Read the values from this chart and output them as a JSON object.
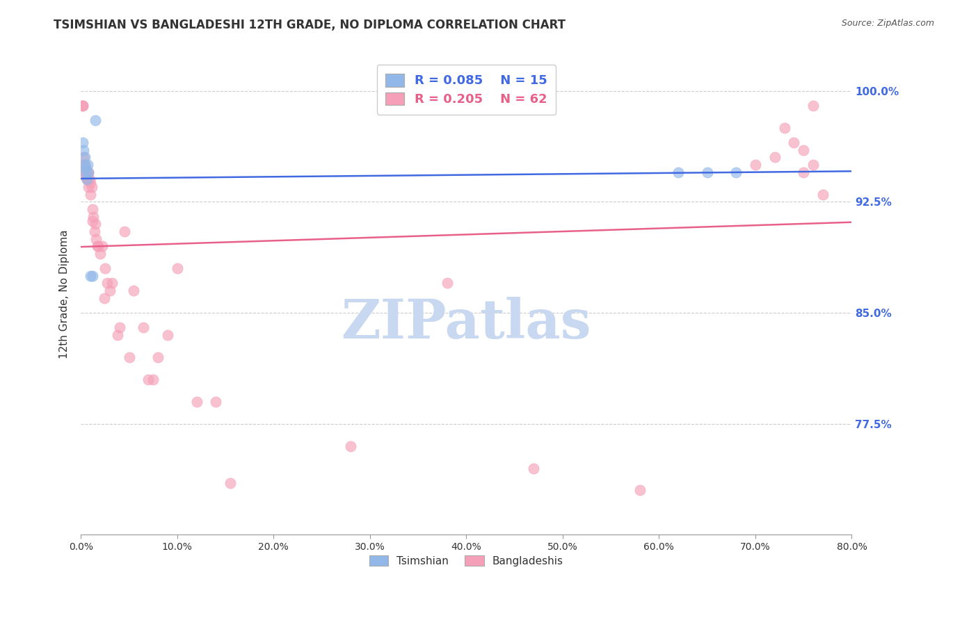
{
  "title": "TSIMSHIAN VS BANGLADESHI 12TH GRADE, NO DIPLOMA CORRELATION CHART",
  "source_text": "Source: ZipAtlas.com",
  "ylabel": "12th Grade, No Diploma",
  "xlim": [
    0.0,
    0.8
  ],
  "ylim": [
    0.7,
    1.025
  ],
  "xtick_labels": [
    "0.0%",
    "10.0%",
    "20.0%",
    "30.0%",
    "40.0%",
    "50.0%",
    "60.0%",
    "70.0%",
    "80.0%"
  ],
  "xtick_values": [
    0.0,
    0.1,
    0.2,
    0.3,
    0.4,
    0.5,
    0.6,
    0.7,
    0.8
  ],
  "ytick_labels": [
    "100.0%",
    "92.5%",
    "85.0%",
    "77.5%"
  ],
  "ytick_values": [
    1.0,
    0.925,
    0.85,
    0.775
  ],
  "right_ytick_color": "#4169E1",
  "watermark": "ZIPatlas",
  "watermark_color": "#c8d8f0",
  "legend_r1": "0.085",
  "legend_n1": "15",
  "legend_r2": "0.205",
  "legend_n2": "62",
  "tsimshian_color": "#91b8e8",
  "bangladeshi_color": "#f5a0b8",
  "trend_blue": "#4169E1",
  "trend_pink": "#e8608a",
  "dot_size": 120,
  "dot_alpha": 0.65,
  "tsimshian_x": [
    0.002,
    0.003,
    0.004,
    0.004,
    0.005,
    0.005,
    0.006,
    0.007,
    0.008,
    0.01,
    0.012,
    0.015,
    0.62,
    0.65,
    0.68
  ],
  "tsimshian_y": [
    0.965,
    0.96,
    0.955,
    0.95,
    0.948,
    0.945,
    0.94,
    0.95,
    0.945,
    0.875,
    0.875,
    0.98,
    0.945,
    0.945,
    0.945
  ],
  "bangladeshi_x": [
    0.001,
    0.002,
    0.002,
    0.003,
    0.003,
    0.003,
    0.004,
    0.004,
    0.005,
    0.005,
    0.006,
    0.006,
    0.007,
    0.007,
    0.008,
    0.008,
    0.009,
    0.01,
    0.01,
    0.011,
    0.012,
    0.012,
    0.013,
    0.014,
    0.015,
    0.016,
    0.017,
    0.018,
    0.02,
    0.022,
    0.024,
    0.025,
    0.027,
    0.03,
    0.032,
    0.038,
    0.04,
    0.045,
    0.05,
    0.055,
    0.065,
    0.07,
    0.075,
    0.08,
    0.09,
    0.1,
    0.12,
    0.14,
    0.155,
    0.28,
    0.38,
    0.47,
    0.58,
    0.7,
    0.72,
    0.73,
    0.74,
    0.75,
    0.75,
    0.76,
    0.76,
    0.77
  ],
  "bangladeshi_y": [
    0.99,
    0.99,
    0.99,
    0.95,
    0.95,
    0.955,
    0.95,
    0.945,
    0.945,
    0.942,
    0.942,
    0.94,
    0.945,
    0.94,
    0.945,
    0.935,
    0.94,
    0.938,
    0.93,
    0.935,
    0.92,
    0.912,
    0.915,
    0.905,
    0.91,
    0.9,
    0.895,
    0.895,
    0.89,
    0.895,
    0.86,
    0.88,
    0.87,
    0.865,
    0.87,
    0.835,
    0.84,
    0.905,
    0.82,
    0.865,
    0.84,
    0.805,
    0.805,
    0.82,
    0.835,
    0.88,
    0.79,
    0.79,
    0.735,
    0.76,
    0.87,
    0.745,
    0.73,
    0.95,
    0.955,
    0.975,
    0.965,
    0.96,
    0.945,
    0.99,
    0.95,
    0.93
  ]
}
